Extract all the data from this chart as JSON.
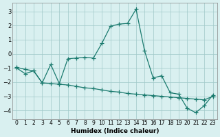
{
  "line1_x": [
    0,
    1,
    2,
    3,
    4,
    5,
    6,
    7,
    8,
    9,
    10,
    11,
    12,
    13,
    14,
    15,
    16,
    17,
    18,
    19,
    20,
    21,
    22,
    23
  ],
  "line1_y": [
    -1.0,
    -1.4,
    -1.2,
    -2.05,
    -0.75,
    -2.1,
    -0.35,
    -0.3,
    -0.25,
    -0.3,
    0.75,
    1.95,
    2.1,
    2.15,
    3.15,
    0.2,
    -1.7,
    -1.55,
    -2.75,
    -2.85,
    -3.85,
    -4.15,
    -3.65,
    -2.9
  ],
  "line2_x": [
    0,
    1,
    2,
    3,
    4,
    5,
    6,
    7,
    8,
    9,
    10,
    11,
    12,
    13,
    14,
    15,
    16,
    17,
    18,
    19,
    20,
    21,
    22,
    23
  ],
  "line2_y": [
    -0.95,
    -1.1,
    -1.2,
    -2.05,
    -2.1,
    -2.15,
    -2.2,
    -2.3,
    -2.4,
    -2.45,
    -2.55,
    -2.65,
    -2.7,
    -2.8,
    -2.85,
    -2.9,
    -2.95,
    -3.0,
    -3.05,
    -3.1,
    -3.15,
    -3.2,
    -3.25,
    -3.0
  ],
  "color": "#1a7a6e",
  "bg_color": "#d9f0f0",
  "grid_color": "#a0c8c8",
  "xlabel": "Humidex (Indice chaleur)",
  "xlim": [
    -0.5,
    23.5
  ],
  "ylim": [
    -4.6,
    3.6
  ],
  "yticks": [
    -4,
    -3,
    -2,
    -1,
    0,
    1,
    2,
    3
  ],
  "xticks": [
    0,
    1,
    2,
    3,
    4,
    5,
    6,
    7,
    8,
    9,
    10,
    11,
    12,
    13,
    14,
    15,
    16,
    17,
    18,
    19,
    20,
    21,
    22,
    23
  ],
  "xtick_labels": [
    "0",
    "1",
    "2",
    "3",
    "4",
    "5",
    "6",
    "7",
    "8",
    "9",
    "10",
    "11",
    "12",
    "13",
    "14",
    "15",
    "16",
    "17",
    "18",
    "19",
    "20",
    "21",
    "22",
    "23"
  ],
  "marker": "+"
}
